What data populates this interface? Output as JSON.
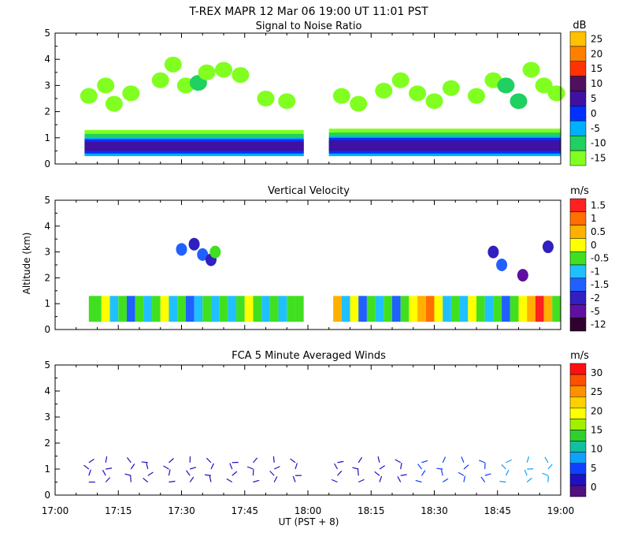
{
  "header": {
    "main_title": "T-REX   MAPR 12 Mar 06   19:00 UT   11:01   PST"
  },
  "chart_data": [
    {
      "type": "heatmap",
      "title": "Signal to Noise Ratio",
      "ylabel": "",
      "xlabel": "",
      "ylim": [
        0,
        5
      ],
      "yticks": [
        "0",
        "1",
        "2",
        "3",
        "4",
        "5"
      ],
      "colorbar": {
        "unit": "dB",
        "labels": [
          "25",
          "20",
          "15",
          "10",
          "5",
          "0",
          "-5",
          "-10",
          "-15"
        ],
        "colors": [
          "#ffc000",
          "#ff8000",
          "#ff3300",
          "#501060",
          "#4010a0",
          "#0030ff",
          "#00b0ff",
          "#20d060",
          "#80ff20"
        ]
      },
      "segments": [
        {
          "start": "17:07",
          "end": "17:59",
          "layers": [
            {
              "bottom": 0.3,
              "top": 1.3,
              "db": -15
            },
            {
              "bottom": 0.3,
              "top": 1.15,
              "db": -10
            },
            {
              "bottom": 0.3,
              "top": 1.0,
              "db": -5
            },
            {
              "bottom": 0.4,
              "top": 0.95,
              "db": 0
            },
            {
              "bottom": 0.5,
              "top": 0.85,
              "db": 5
            }
          ]
        },
        {
          "start": "18:05",
          "end": "19:00",
          "layers": [
            {
              "bottom": 0.3,
              "top": 1.35,
              "db": -15
            },
            {
              "bottom": 0.3,
              "top": 1.2,
              "db": -10
            },
            {
              "bottom": 0.3,
              "top": 1.05,
              "db": -5
            },
            {
              "bottom": 0.4,
              "top": 1.0,
              "db": 0
            },
            {
              "bottom": 0.5,
              "top": 0.9,
              "db": 5
            }
          ]
        }
      ],
      "upper_echoes": [
        {
          "time": "17:08",
          "alt": 2.6,
          "db": -15
        },
        {
          "time": "17:12",
          "alt": 3.0,
          "db": -15
        },
        {
          "time": "17:14",
          "alt": 2.3,
          "db": -15
        },
        {
          "time": "17:18",
          "alt": 2.7,
          "db": -15
        },
        {
          "time": "17:25",
          "alt": 3.2,
          "db": -15
        },
        {
          "time": "17:28",
          "alt": 3.8,
          "db": -15
        },
        {
          "time": "17:31",
          "alt": 3.0,
          "db": -15
        },
        {
          "time": "17:34",
          "alt": 3.1,
          "db": -10
        },
        {
          "time": "17:36",
          "alt": 3.5,
          "db": -15
        },
        {
          "time": "17:40",
          "alt": 3.6,
          "db": -15
        },
        {
          "time": "17:44",
          "alt": 3.4,
          "db": -15
        },
        {
          "time": "17:50",
          "alt": 2.5,
          "db": -15
        },
        {
          "time": "17:55",
          "alt": 2.4,
          "db": -15
        },
        {
          "time": "18:08",
          "alt": 2.6,
          "db": -15
        },
        {
          "time": "18:12",
          "alt": 2.3,
          "db": -15
        },
        {
          "time": "18:18",
          "alt": 2.8,
          "db": -15
        },
        {
          "time": "18:22",
          "alt": 3.2,
          "db": -15
        },
        {
          "time": "18:26",
          "alt": 2.7,
          "db": -15
        },
        {
          "time": "18:30",
          "alt": 2.4,
          "db": -15
        },
        {
          "time": "18:34",
          "alt": 2.9,
          "db": -15
        },
        {
          "time": "18:40",
          "alt": 2.6,
          "db": -15
        },
        {
          "time": "18:44",
          "alt": 3.2,
          "db": -15
        },
        {
          "time": "18:47",
          "alt": 3.0,
          "db": -10
        },
        {
          "time": "18:50",
          "alt": 2.4,
          "db": -10
        },
        {
          "time": "18:53",
          "alt": 3.6,
          "db": -15
        },
        {
          "time": "18:56",
          "alt": 3.0,
          "db": -15
        },
        {
          "time": "18:59",
          "alt": 2.7,
          "db": -15
        }
      ]
    },
    {
      "type": "heatmap",
      "title": "Vertical Velocity",
      "ylabel": "Altitude (km)",
      "xlabel": "",
      "ylim": [
        0,
        5
      ],
      "yticks": [
        "0",
        "1",
        "2",
        "3",
        "4",
        "5"
      ],
      "colorbar": {
        "unit": "m/s",
        "labels": [
          "1.5",
          "1",
          "0.5",
          "0",
          "-0.5",
          "-1",
          "-1.5",
          "-2",
          "-5",
          "-12"
        ],
        "colors": [
          "#ff2020",
          "#ff7000",
          "#ffb000",
          "#ffff00",
          "#40e020",
          "#20c0ff",
          "#2060ff",
          "#3020c0",
          "#6010a0",
          "#300030"
        ]
      },
      "segments": [
        {
          "start": "17:07",
          "end": "17:59",
          "bottom": 0.3,
          "top": 1.3
        },
        {
          "start": "18:05",
          "end": "19:00",
          "bottom": 0.3,
          "top": 1.3
        }
      ],
      "columns": [
        {
          "time": "17:08",
          "v": -0.5
        },
        {
          "time": "17:11",
          "v": 0
        },
        {
          "time": "17:13",
          "v": -1
        },
        {
          "time": "17:15",
          "v": -0.5
        },
        {
          "time": "17:17",
          "v": -1.5
        },
        {
          "time": "17:19",
          "v": -0.5
        },
        {
          "time": "17:21",
          "v": -1
        },
        {
          "time": "17:23",
          "v": -0.5
        },
        {
          "time": "17:25",
          "v": 0
        },
        {
          "time": "17:27",
          "v": -1
        },
        {
          "time": "17:29",
          "v": -0.5
        },
        {
          "time": "17:31",
          "v": -1.5
        },
        {
          "time": "17:33",
          "v": -1
        },
        {
          "time": "17:35",
          "v": -0.5
        },
        {
          "time": "17:37",
          "v": -1
        },
        {
          "time": "17:39",
          "v": -0.5
        },
        {
          "time": "17:41",
          "v": -1
        },
        {
          "time": "17:43",
          "v": -0.5
        },
        {
          "time": "17:45",
          "v": 0
        },
        {
          "time": "17:47",
          "v": -0.5
        },
        {
          "time": "17:49",
          "v": -1
        },
        {
          "time": "17:51",
          "v": -0.5
        },
        {
          "time": "17:53",
          "v": -1
        },
        {
          "time": "17:55",
          "v": -0.5
        },
        {
          "time": "17:57",
          "v": -0.5
        },
        {
          "time": "18:06",
          "v": 0.5
        },
        {
          "time": "18:08",
          "v": -1
        },
        {
          "time": "18:10",
          "v": 0
        },
        {
          "time": "18:12",
          "v": -1.5
        },
        {
          "time": "18:14",
          "v": -0.5
        },
        {
          "time": "18:16",
          "v": -1
        },
        {
          "time": "18:18",
          "v": -0.5
        },
        {
          "time": "18:20",
          "v": -1.5
        },
        {
          "time": "18:22",
          "v": -0.5
        },
        {
          "time": "18:24",
          "v": 0
        },
        {
          "time": "18:26",
          "v": 0.5
        },
        {
          "time": "18:28",
          "v": 1
        },
        {
          "time": "18:30",
          "v": 0
        },
        {
          "time": "18:32",
          "v": -1
        },
        {
          "time": "18:34",
          "v": -0.5
        },
        {
          "time": "18:36",
          "v": -1
        },
        {
          "time": "18:38",
          "v": 0
        },
        {
          "time": "18:40",
          "v": -0.5
        },
        {
          "time": "18:42",
          "v": -1
        },
        {
          "time": "18:44",
          "v": -0.5
        },
        {
          "time": "18:46",
          "v": -1.5
        },
        {
          "time": "18:48",
          "v": -0.5
        },
        {
          "time": "18:50",
          "v": 0
        },
        {
          "time": "18:52",
          "v": 0.5
        },
        {
          "time": "18:54",
          "v": 1.5
        },
        {
          "time": "18:56",
          "v": 0.5
        },
        {
          "time": "18:58",
          "v": -0.5
        }
      ],
      "upper_echoes": [
        {
          "time": "17:30",
          "alt": 3.1,
          "v": -1.5
        },
        {
          "time": "17:33",
          "alt": 3.3,
          "v": -2
        },
        {
          "time": "17:35",
          "alt": 2.9,
          "v": -1.5
        },
        {
          "time": "17:37",
          "alt": 2.7,
          "v": -2
        },
        {
          "time": "17:38",
          "alt": 3.0,
          "v": -0.5
        },
        {
          "time": "18:44",
          "alt": 3.0,
          "v": -2
        },
        {
          "time": "18:46",
          "alt": 2.5,
          "v": -1.5
        },
        {
          "time": "18:51",
          "alt": 2.1,
          "v": -5
        },
        {
          "time": "18:57",
          "alt": 3.2,
          "v": -2
        }
      ]
    },
    {
      "type": "scatter",
      "title": "FCA 5 Minute Averaged Winds",
      "ylabel": "",
      "xlabel": "UT  (PST + 8)",
      "ylim": [
        0,
        5
      ],
      "yticks": [
        "0",
        "1",
        "2",
        "3",
        "4",
        "5"
      ],
      "xticks": [
        "17:00",
        "17:15",
        "17:30",
        "17:45",
        "18:00",
        "18:15",
        "18:30",
        "18:45",
        "19:00"
      ],
      "colorbar": {
        "unit": "m/s",
        "labels": [
          "30",
          "25",
          "20",
          "15",
          "10",
          "5",
          "0"
        ],
        "colors": [
          "#ff1010",
          "#ff5000",
          "#ff9000",
          "#ffd000",
          "#ffff00",
          "#a0f000",
          "#30d030",
          "#10c0a0",
          "#10a0ff",
          "#1040ff",
          "#2010c0",
          "#501080"
        ]
      },
      "wind_times": [
        "17:08",
        "17:12",
        "17:18",
        "17:22",
        "17:27",
        "17:32",
        "17:37",
        "17:42",
        "17:47",
        "17:52",
        "17:57",
        "18:07",
        "18:12",
        "18:17",
        "18:22",
        "18:27",
        "18:32",
        "18:37",
        "18:42",
        "18:47",
        "18:52",
        "18:57"
      ],
      "wind_levels_km": [
        0.5,
        0.75,
        1.0,
        1.25
      ],
      "wind_speed_ms": [
        3,
        3,
        3,
        3,
        4,
        4,
        4,
        4,
        3,
        3,
        4,
        4,
        3,
        3,
        4,
        6,
        6,
        5,
        6,
        7,
        7,
        8
      ]
    }
  ],
  "xaxis": {
    "ticks": [
      "17:00",
      "17:15",
      "17:30",
      "17:45",
      "18:00",
      "18:15",
      "18:30",
      "18:45",
      "19:00"
    ],
    "label": "UT  (PST + 8)"
  }
}
